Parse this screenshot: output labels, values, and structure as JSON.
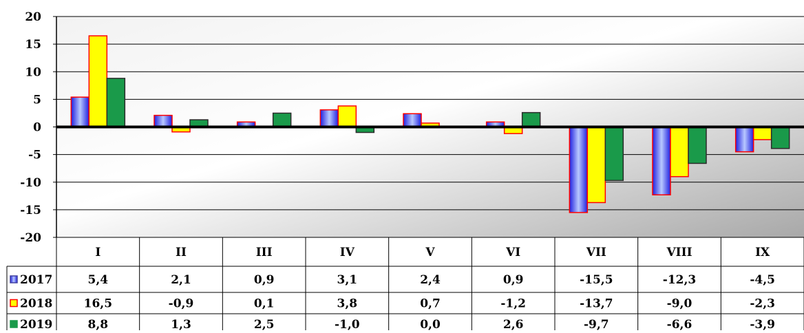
{
  "chart_data": {
    "type": "bar",
    "categories": [
      "I",
      "II",
      "III",
      "IV",
      "V",
      "VI",
      "VII",
      "VIII",
      "IX"
    ],
    "ylim": [
      -20,
      20
    ],
    "yticks": [
      "20",
      "15",
      "10",
      "5",
      "0",
      "-5",
      "-10",
      "-15",
      "-20"
    ],
    "grid": true,
    "legend": "left of data table",
    "series": [
      {
        "name": "2017",
        "color": "#3b3bff",
        "values": [
          5.4,
          2.1,
          0.9,
          3.1,
          2.4,
          0.9,
          -15.5,
          -12.3,
          -4.5
        ],
        "labels": [
          "5,4",
          "2,1",
          "0,9",
          "3,1",
          "2,4",
          "0,9",
          "-15,5",
          "-12,3",
          "-4,5"
        ]
      },
      {
        "name": "2018",
        "color": "#ffff00",
        "values": [
          16.5,
          -0.9,
          0.1,
          3.8,
          0.7,
          -1.2,
          -13.7,
          -9.0,
          -2.3
        ],
        "labels": [
          "16,5",
          "-0,9",
          "0,1",
          "3,8",
          "0,7",
          "-1,2",
          "-13,7",
          "-9,0",
          "-2,3"
        ]
      },
      {
        "name": "2019",
        "color": "#1a9a4a",
        "values": [
          8.8,
          1.3,
          2.5,
          -1.0,
          0.0,
          2.6,
          -9.7,
          -6.6,
          -3.9
        ],
        "labels": [
          "8,8",
          "1,3",
          "2,5",
          "-1,0",
          "0,0",
          "2,6",
          "-9,7",
          "-6,6",
          "-3,9"
        ]
      }
    ]
  }
}
